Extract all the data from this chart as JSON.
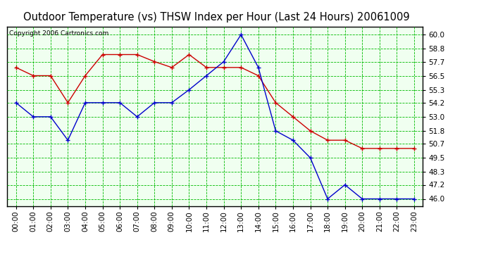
{
  "title": "Outdoor Temperature (vs) THSW Index per Hour (Last 24 Hours) 20061009",
  "copyright": "Copyright 2006 Cartronics.com",
  "hours": [
    0,
    1,
    2,
    3,
    4,
    5,
    6,
    7,
    8,
    9,
    10,
    11,
    12,
    13,
    14,
    15,
    16,
    17,
    18,
    19,
    20,
    21,
    22,
    23
  ],
  "hour_labels": [
    "00:00",
    "01:00",
    "02:00",
    "03:00",
    "04:00",
    "05:00",
    "06:00",
    "07:00",
    "08:00",
    "09:00",
    "10:00",
    "11:00",
    "12:00",
    "13:00",
    "14:00",
    "15:00",
    "16:00",
    "17:00",
    "18:00",
    "19:00",
    "20:00",
    "21:00",
    "22:00",
    "23:00"
  ],
  "red_data": [
    57.2,
    56.5,
    56.5,
    54.2,
    56.5,
    58.3,
    58.3,
    58.3,
    57.7,
    57.2,
    58.3,
    57.2,
    57.2,
    57.2,
    56.5,
    54.2,
    53.0,
    51.8,
    51.0,
    51.0,
    50.3,
    50.3,
    50.3,
    50.3
  ],
  "blue_data": [
    54.2,
    53.0,
    53.0,
    51.0,
    54.2,
    54.2,
    54.2,
    53.0,
    54.2,
    54.2,
    55.3,
    56.5,
    57.7,
    60.0,
    57.2,
    51.8,
    51.0,
    49.5,
    46.0,
    47.2,
    46.0,
    46.0,
    46.0,
    46.0
  ],
  "ylim_min": 45.4,
  "ylim_max": 60.7,
  "yticks": [
    46.0,
    47.2,
    48.3,
    49.5,
    50.7,
    51.8,
    53.0,
    54.2,
    55.3,
    56.5,
    57.7,
    58.8,
    60.0
  ],
  "bg_color": "#ffffff",
  "plot_bg_color": "#f0fff0",
  "grid_color": "#00bb00",
  "red_color": "#cc0000",
  "blue_color": "#0000cc",
  "border_color": "#000000",
  "title_color": "#000000",
  "copyright_color": "#000000",
  "title_fontsize": 10.5,
  "copyright_fontsize": 6.5,
  "tick_fontsize": 7.5,
  "marker_size": 5,
  "linewidth": 1.0
}
